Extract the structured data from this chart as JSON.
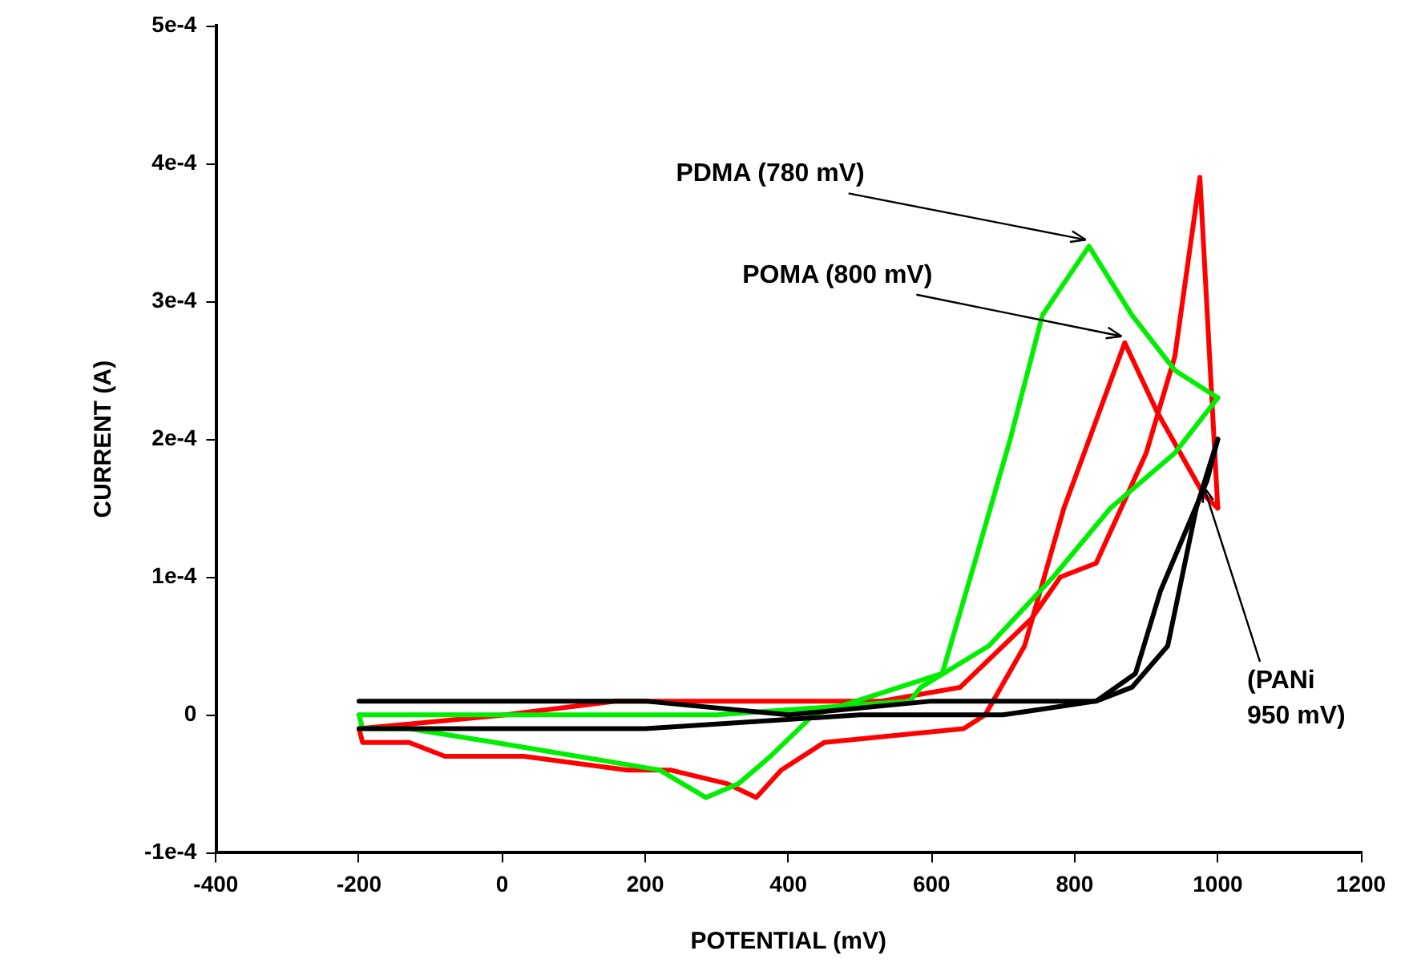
{
  "chart_data": {
    "type": "line",
    "xlabel": "POTENTIAL (mV)",
    "ylabel": "CURRENT (A)",
    "xlim": [
      -400,
      1200
    ],
    "xticks": [
      -400,
      -200,
      0,
      200,
      400,
      600,
      800,
      1000,
      1200
    ],
    "ylim": [
      -0.0001,
      0.0005
    ],
    "yticks": [
      {
        "value": -0.0001,
        "label": "-1e-4"
      },
      0,
      {
        "value": 0.0001,
        "label": "1e-4"
      },
      {
        "value": 0.0002,
        "label": "2e-4"
      },
      {
        "value": 0.0003,
        "label": "3e-4"
      },
      {
        "value": 0.0004,
        "label": "4e-4"
      },
      {
        "value": 0.0005,
        "label": "5e-4"
      }
    ],
    "grid": false,
    "legend": false,
    "marker": "none",
    "line_style": "solid",
    "series": [
      {
        "color": "#000000",
        "x": [
          -200,
          0,
          200,
          400,
          600,
          750,
          830,
          880,
          930,
          970,
          1000
        ],
        "values": [
          1e-05,
          1e-05,
          1e-05,
          0,
          1e-05,
          1e-05,
          1e-05,
          2e-05,
          5e-05,
          0.00015,
          0.0002
        ]
      },
      {
        "color": "#000000",
        "x": [
          -200,
          200,
          500,
          700,
          830,
          885,
          920,
          985,
          1000
        ],
        "values": [
          -1e-05,
          -1e-05,
          0,
          0,
          1e-05,
          3e-05,
          9e-05,
          0.00017,
          0.0002
        ]
      },
      {
        "color": "#00ee00",
        "x": [
          -200,
          300,
          570,
          585,
          680,
          770,
          850,
          940,
          1000
        ],
        "values": [
          0,
          0,
          1e-05,
          2e-05,
          5e-05,
          0.0001,
          0.00015,
          0.00019,
          0.00023
        ]
      },
      {
        "color": "#00ee00",
        "x": [
          -200,
          -195,
          -130,
          -10,
          105,
          220,
          285,
          330,
          375,
          435,
          615,
          660,
          710,
          755,
          820,
          880,
          940,
          1000
        ],
        "values": [
          0,
          -1e-05,
          -1e-05,
          -2e-05,
          -3e-05,
          -4e-05,
          -6e-05,
          -5e-05,
          -3e-05,
          0,
          3e-05,
          0.00011,
          0.0002,
          0.00029,
          0.00034,
          0.00029,
          0.00025,
          0.00023
        ]
      },
      {
        "color": "#ff0000",
        "x": [
          -200,
          5,
          160,
          530,
          640,
          740,
          780,
          830,
          900,
          940,
          975,
          1000
        ],
        "values": [
          -1e-05,
          0,
          1e-05,
          1e-05,
          2e-05,
          7e-05,
          0.0001,
          0.00011,
          0.00019,
          0.00026,
          0.00039,
          0.00015
        ]
      },
      {
        "color": "#ff0000",
        "x": [
          -200,
          -195,
          -130,
          -80,
          30,
          175,
          235,
          315,
          355,
          390,
          450,
          645,
          675,
          730,
          785,
          870,
          915,
          980,
          1000
        ],
        "values": [
          -1e-05,
          -2e-05,
          -2e-05,
          -3e-05,
          -3e-05,
          -4e-05,
          -4e-05,
          -5e-05,
          -6e-05,
          -4e-05,
          -2e-05,
          -1e-05,
          0,
          5e-05,
          0.00015,
          0.00027,
          0.00022,
          0.00016,
          0.00015
        ]
      }
    ],
    "annotations": [
      {
        "text": "PDMA (780 mV)",
        "x": 820,
        "y": 0.00034
      },
      {
        "text": "POMA (800 mV)",
        "x": 870,
        "y": 0.00027
      },
      {
        "text": "(PANi\n950 mV)",
        "x": 985,
        "y": 0.00017
      }
    ]
  }
}
